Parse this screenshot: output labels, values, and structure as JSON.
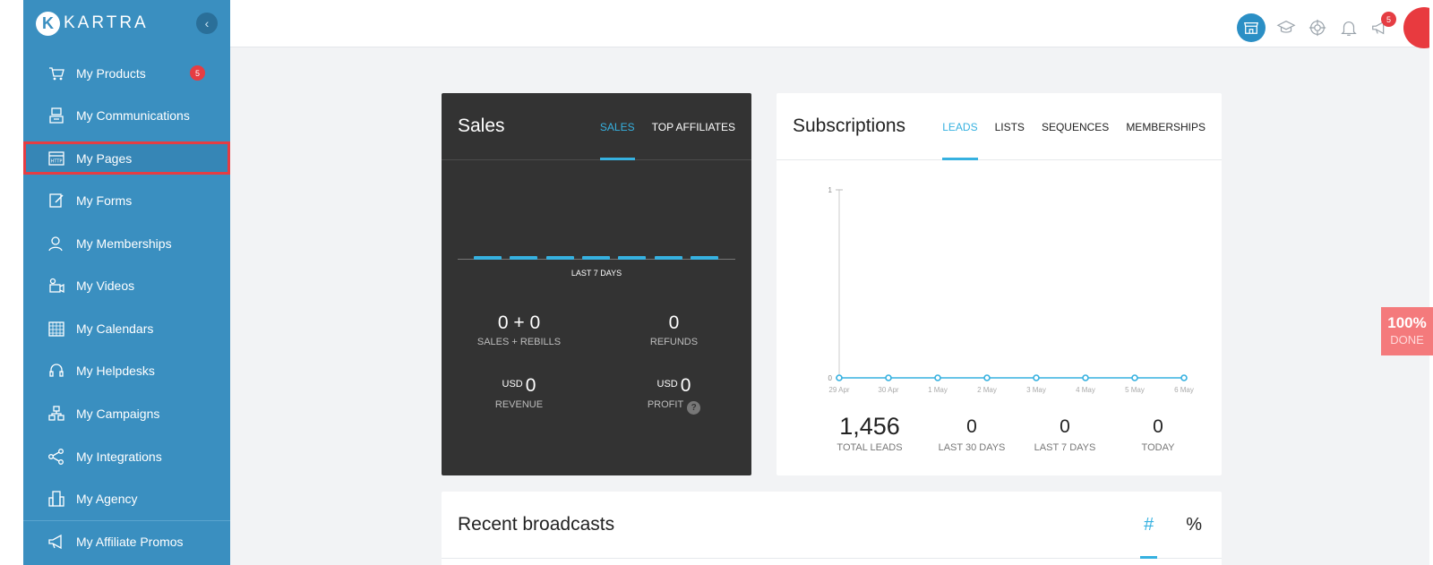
{
  "brand": {
    "logo_letter": "K",
    "name": "KARTRA"
  },
  "sidebar": {
    "items": [
      {
        "label": "My Products",
        "icon": "cart-icon",
        "badge": "5"
      },
      {
        "label": "My Communications",
        "icon": "communications-icon"
      },
      {
        "label": "My Pages",
        "icon": "http-page-icon",
        "active": true
      },
      {
        "label": "My Forms",
        "icon": "form-edit-icon"
      },
      {
        "label": "My Memberships",
        "icon": "members-icon"
      },
      {
        "label": "My Videos",
        "icon": "video-camera-icon"
      },
      {
        "label": "My Calendars",
        "icon": "calendar-icon"
      },
      {
        "label": "My Helpdesks",
        "icon": "headset-icon"
      },
      {
        "label": "My Campaigns",
        "icon": "campaign-blocks-icon"
      },
      {
        "label": "My Integrations",
        "icon": "share-nodes-icon"
      },
      {
        "label": "My Agency",
        "icon": "building-icon"
      },
      {
        "label": "My Affiliate Promos",
        "icon": "megaphone-icon"
      }
    ]
  },
  "topbar": {
    "icons": [
      "store-icon",
      "graduation-cap-icon",
      "lifebuoy-icon",
      "bell-icon",
      "megaphone-icon"
    ],
    "notification_badge": "5",
    "avatar_color": "#e83a3f"
  },
  "sales": {
    "title": "Sales",
    "tabs": [
      "SALES",
      "TOP AFFILIATES"
    ],
    "active_tab": "SALES",
    "chart_caption": "LAST 7 DAYS",
    "sales_rebills": {
      "value": "0 + 0",
      "label": "SALES + REBILLS"
    },
    "refunds": {
      "value": "0",
      "label": "REFUNDS"
    },
    "revenue": {
      "currency": "USD",
      "value": "0",
      "label": "REVENUE"
    },
    "profit": {
      "currency": "USD",
      "value": "0",
      "label": "PROFIT",
      "help": "?"
    }
  },
  "subscriptions": {
    "title": "Subscriptions",
    "tabs": [
      "LEADS",
      "LISTS",
      "SEQUENCES",
      "MEMBERSHIPS"
    ],
    "active_tab": "LEADS",
    "stats": [
      {
        "value": "1,456",
        "label": "TOTAL LEADS"
      },
      {
        "value": "0",
        "label": "LAST 30 DAYS"
      },
      {
        "value": "0",
        "label": "LAST 7 DAYS"
      },
      {
        "value": "0",
        "label": "TODAY"
      }
    ]
  },
  "chart_data": {
    "type": "line",
    "x": [
      "29 Apr",
      "30 Apr",
      "1 May",
      "2 May",
      "3 May",
      "4 May",
      "5 May",
      "6 May"
    ],
    "values": [
      0,
      0,
      0,
      0,
      0,
      0,
      0,
      0
    ],
    "yticks": [
      "0",
      "1"
    ],
    "ylim": [
      0,
      1
    ],
    "color": "#36b1e0"
  },
  "broadcasts": {
    "title": "Recent broadcasts",
    "tabs": [
      "#",
      "%"
    ],
    "active_tab": "#"
  },
  "progress": {
    "percent": "100%",
    "label": "DONE"
  },
  "colors": {
    "sidebar": "#3a8fc0",
    "accent": "#36b1e0",
    "alert": "#e53d43"
  }
}
